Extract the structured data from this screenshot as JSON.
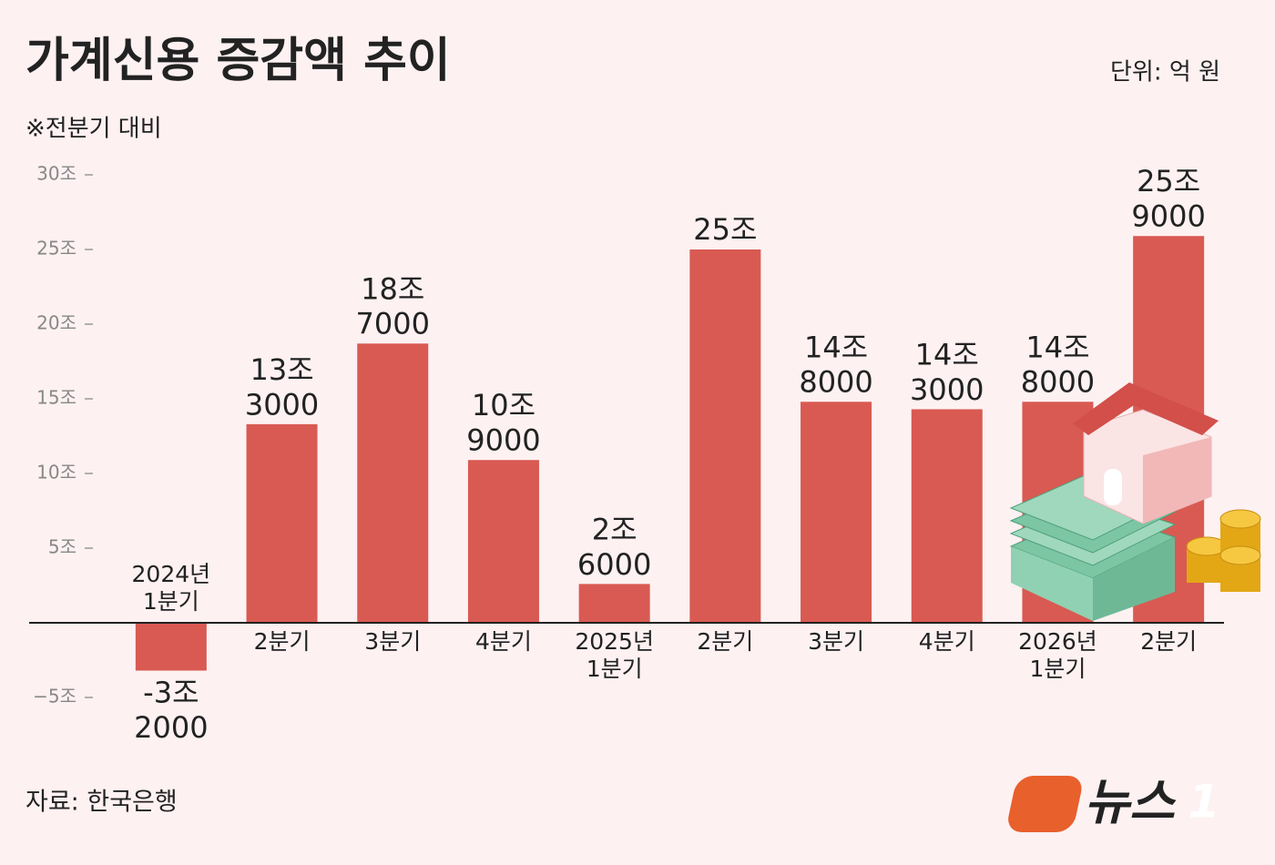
{
  "chart_data": {
    "type": "bar",
    "title": "가계신용 증감액 추이",
    "subtitle": "※전분기 대비",
    "unit": "단위: 억 원",
    "source": "자료: 한국은행",
    "logo": "뉴스",
    "logo_mark": "1",
    "categories": [
      "2024년 1분기",
      "2분기",
      "3분기",
      "4분기",
      "2025년 1분기",
      "2분기",
      "3분기",
      "4분기",
      "2026년 1분기",
      "2분기"
    ],
    "values": [
      -32000,
      133000,
      187000,
      109000,
      26000,
      250000,
      148000,
      143000,
      148000,
      259000
    ],
    "value_labels": [
      "-3조 2000",
      "13조 3000",
      "18조 7000",
      "10조 9000",
      "2조 6000",
      "25조",
      "14조 8000",
      "14조 3000",
      "14조 8000",
      "25조 9000"
    ],
    "color": "#d95a52",
    "ylim": [
      -50000,
      300000
    ],
    "yticks": [
      {
        "value": -50000,
        "label": "−5조"
      },
      {
        "value": 50000,
        "label": "5조"
      },
      {
        "value": 100000,
        "label": "10조"
      },
      {
        "value": 150000,
        "label": "15조"
      },
      {
        "value": 200000,
        "label": "20조"
      },
      {
        "value": 250000,
        "label": "25조"
      },
      {
        "value": 300000,
        "label": "30조"
      }
    ]
  }
}
